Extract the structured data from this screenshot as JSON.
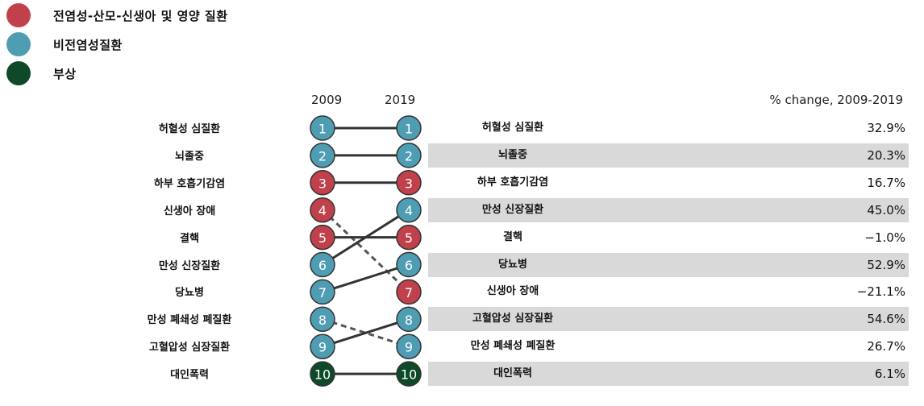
{
  "legend": [
    {
      "label": "전염성-산모-신생아  및 영양 질환",
      "color": "#c0404b"
    },
    {
      "label": "비전염성질환",
      "color": "#4e9db2"
    },
    {
      "label": "부상",
      "color": "#0e4a2a"
    }
  ],
  "header": {
    "year_left": "2009",
    "year_right": "2019",
    "pct_title": "% change, 2009-2019"
  },
  "colors": {
    "communicable": "#c0404b",
    "ncd": "#4e9db2",
    "injury": "#0e4a2a",
    "shade": "#d9d9d9"
  },
  "chart_data": {
    "type": "slope",
    "x": [
      "2009",
      "2019"
    ],
    "rank_2009": [
      {
        "rank": 1,
        "cause": "허혈성 심질환",
        "group": "ncd"
      },
      {
        "rank": 2,
        "cause": "뇌졸중",
        "group": "ncd"
      },
      {
        "rank": 3,
        "cause": "하부 호흡기감염",
        "group": "communicable"
      },
      {
        "rank": 4,
        "cause": "신생아 장애",
        "group": "communicable"
      },
      {
        "rank": 5,
        "cause": "결핵",
        "group": "communicable"
      },
      {
        "rank": 6,
        "cause": "만성 신장질환",
        "group": "ncd"
      },
      {
        "rank": 7,
        "cause": "당뇨병",
        "group": "ncd"
      },
      {
        "rank": 8,
        "cause": "만성 폐쇄성 폐질환",
        "group": "ncd"
      },
      {
        "rank": 9,
        "cause": "고혈압성 심장질환",
        "group": "ncd"
      },
      {
        "rank": 10,
        "cause": "대인폭력",
        "group": "injury"
      }
    ],
    "rank_2019": [
      {
        "rank": 1,
        "cause": "허혈성 심질환",
        "group": "ncd",
        "pct_change": "32.9%"
      },
      {
        "rank": 2,
        "cause": "뇌졸중",
        "group": "ncd",
        "pct_change": "20.3%"
      },
      {
        "rank": 3,
        "cause": "하부 호흡기감염",
        "group": "communicable",
        "pct_change": "16.7%"
      },
      {
        "rank": 4,
        "cause": "만성 신장질환",
        "group": "ncd",
        "pct_change": "45.0%"
      },
      {
        "rank": 5,
        "cause": "결핵",
        "group": "communicable",
        "pct_change": "−1.0%"
      },
      {
        "rank": 6,
        "cause": "당뇨병",
        "group": "ncd",
        "pct_change": "52.9%"
      },
      {
        "rank": 7,
        "cause": "신생아 장애",
        "group": "communicable",
        "pct_change": "−21.1%"
      },
      {
        "rank": 8,
        "cause": "고혈압성 심장질환",
        "group": "ncd",
        "pct_change": "54.6%"
      },
      {
        "rank": 9,
        "cause": "만성 폐쇄성 폐질환",
        "group": "ncd",
        "pct_change": "26.7%"
      },
      {
        "rank": 10,
        "cause": "대인폭력",
        "group": "injury",
        "pct_change": "6.1%"
      }
    ],
    "links": [
      {
        "from": 1,
        "to": 1,
        "style": "solid"
      },
      {
        "from": 2,
        "to": 2,
        "style": "solid"
      },
      {
        "from": 3,
        "to": 3,
        "style": "solid"
      },
      {
        "from": 4,
        "to": 7,
        "style": "dashed"
      },
      {
        "from": 5,
        "to": 5,
        "style": "solid"
      },
      {
        "from": 6,
        "to": 4,
        "style": "solid"
      },
      {
        "from": 7,
        "to": 6,
        "style": "solid"
      },
      {
        "from": 8,
        "to": 9,
        "style": "dashed"
      },
      {
        "from": 9,
        "to": 8,
        "style": "solid"
      },
      {
        "from": 10,
        "to": 10,
        "style": "solid"
      }
    ]
  }
}
